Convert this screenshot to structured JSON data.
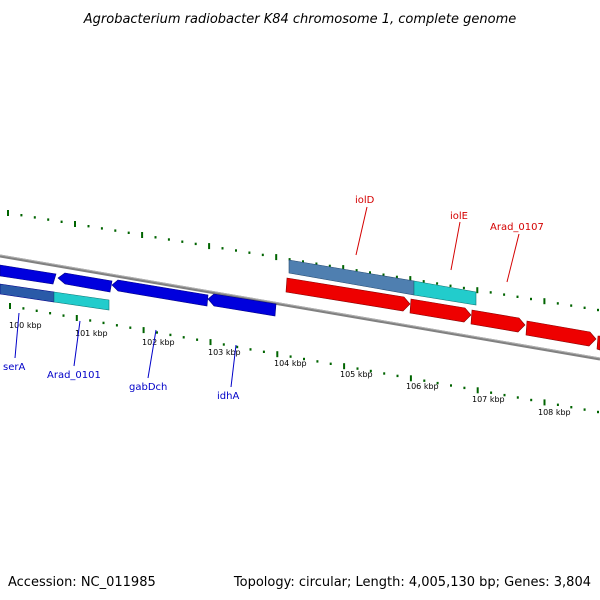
{
  "title": "Agrobacterium radiobacter K84 chromosome 1, complete genome",
  "footer": {
    "accession": "Accession: NC_011985",
    "summary": "Topology: circular; Length: 4,005,130 bp; Genes: 3,804"
  },
  "colors": {
    "backbone": "#808080",
    "ticks": "#006400",
    "gene_blue": "#0000dd",
    "gene_cyan": "#22cccc",
    "gene_red": "#ee0000",
    "gene_steel": "#4f7fb0",
    "label_blue": "#0000c8",
    "label_red": "#d40000"
  },
  "scale_labels": [
    "100 kbp",
    "101 kbp",
    "102 kbp",
    "103 kbp",
    "104 kbp",
    "105 kbp",
    "106 kbp",
    "107 kbp",
    "108 kbp"
  ],
  "gene_labels": {
    "serA": "serA",
    "arad_0101": "Arad_0101",
    "gabDch": "gabDch",
    "idhA": "idhA",
    "iolD": "iolD",
    "iolE": "iolE",
    "arad_0107": "Arad_0107"
  }
}
